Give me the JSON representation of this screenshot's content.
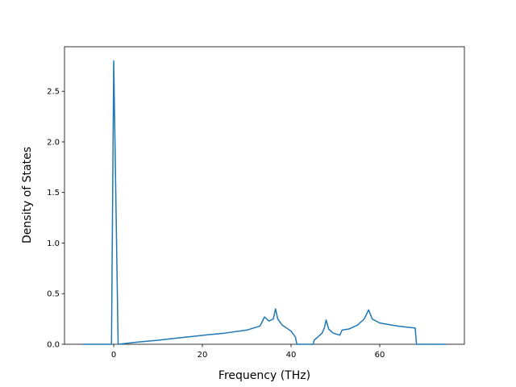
{
  "chart_data": {
    "type": "line",
    "x_label": "Frequency (THz)",
    "y_label": "Density of States",
    "x": [
      -7,
      -0.5,
      0,
      1,
      5,
      10,
      15,
      20,
      25,
      30,
      33,
      34,
      35,
      36,
      36.5,
      37,
      38,
      40,
      41,
      41.3,
      45,
      45.2,
      46,
      47,
      47.5,
      47.9,
      48.5,
      49.5,
      51,
      51.5,
      53,
      55,
      56.5,
      57.5,
      58.3,
      60,
      64,
      68,
      68.3,
      75
    ],
    "series": [
      {
        "color": "#1f77b4",
        "values": [
          0,
          0,
          2.8,
          0,
          0.02,
          0.04,
          0.065,
          0.088,
          0.11,
          0.14,
          0.18,
          0.27,
          0.23,
          0.25,
          0.35,
          0.25,
          0.19,
          0.13,
          0.07,
          0,
          0,
          0.04,
          0.07,
          0.11,
          0.16,
          0.24,
          0.15,
          0.11,
          0.09,
          0.14,
          0.15,
          0.19,
          0.25,
          0.34,
          0.25,
          0.21,
          0.18,
          0.16,
          0,
          0
        ]
      }
    ],
    "xlim": [
      -11.1,
      79.1
    ],
    "ylim": [
      0,
      2.94
    ],
    "xticks": [
      0,
      20,
      40,
      60
    ],
    "yticks": [
      {
        "value": 0,
        "label": "0.0"
      },
      0.5,
      {
        "value": 1,
        "label": "1.0"
      },
      1.5,
      {
        "value": 2,
        "label": "2.0"
      },
      2.5
    ]
  }
}
